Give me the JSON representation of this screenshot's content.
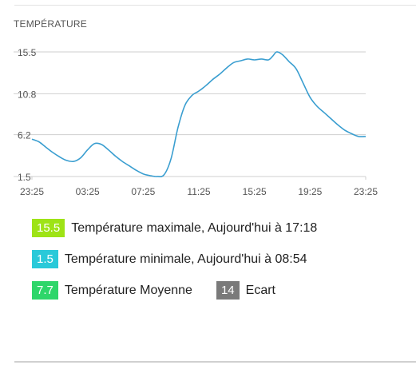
{
  "chart_data": {
    "type": "line",
    "title": "TEMPÉRATURE",
    "y_ticks": [
      1.5,
      6.2,
      10.8,
      15.5
    ],
    "y_tick_labels": [
      "1.5",
      "6.2",
      "10.8",
      "15.5"
    ],
    "x_tick_labels": [
      "23:25",
      "03:25",
      "07:25",
      "11:25",
      "15:25",
      "19:25",
      "23:25"
    ],
    "ylim": [
      1.5,
      15.5
    ],
    "grid": true,
    "line_color": "#3a9ed0",
    "series": [
      {
        "x": [
          0,
          0.5,
          1,
          1.5,
          2,
          2.5,
          3,
          3.5,
          4,
          4.5,
          5,
          5.5,
          6,
          6.5,
          7,
          7.5,
          8,
          8.5,
          9,
          9.5,
          10,
          10.5,
          11,
          11.5,
          12,
          12.5,
          13,
          13.5,
          14,
          14.5,
          15,
          15.5,
          16,
          16.5,
          17,
          17.3,
          17.6,
          18,
          18.5,
          19,
          19.5,
          20,
          20.5,
          21,
          21.5,
          22,
          22.5,
          23,
          23.5,
          24
        ],
        "values": [
          5.7,
          5.4,
          4.8,
          4.2,
          3.7,
          3.3,
          3.2,
          3.6,
          4.5,
          5.2,
          5.1,
          4.5,
          3.8,
          3.2,
          2.7,
          2.2,
          1.8,
          1.6,
          1.5,
          1.7,
          3.5,
          7.0,
          9.5,
          10.6,
          11.1,
          11.7,
          12.4,
          13.0,
          13.7,
          14.3,
          14.5,
          14.7,
          14.6,
          14.7,
          14.6,
          15.0,
          15.5,
          15.2,
          14.4,
          13.6,
          12.0,
          10.4,
          9.4,
          8.7,
          8.0,
          7.3,
          6.7,
          6.3,
          6.0,
          6.0
        ]
      }
    ]
  },
  "legend": {
    "max": {
      "value": "15.5",
      "text": "Température maximale, Aujourd'hui à 17:18",
      "color": "#9ee316"
    },
    "min": {
      "value": "1.5",
      "text": "Température minimale, Aujourd'hui à 08:54",
      "color": "#29c9d9"
    },
    "avg": {
      "value": "7.7",
      "text": "Température Moyenne",
      "color": "#2ed66a"
    },
    "ecart": {
      "value": "14",
      "text": "Ecart",
      "color": "#7a7a7a"
    }
  }
}
